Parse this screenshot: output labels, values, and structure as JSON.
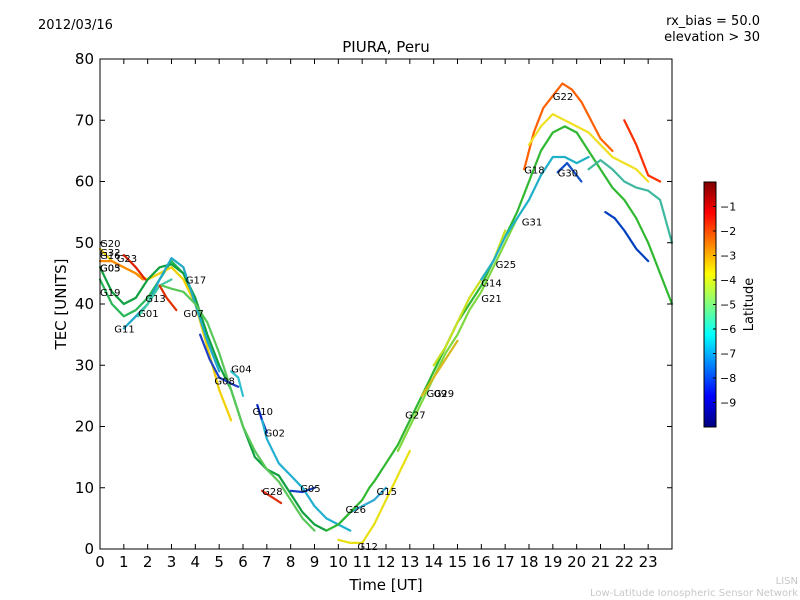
{
  "header": {
    "date": "2012/03/16",
    "rx_bias": "rx_bias = 50.0",
    "elevation": "elevation > 30",
    "title": "PIURA, Peru"
  },
  "footer": {
    "credit_short": "LISN",
    "credit_long": "Low-Latitude Ionospheric Sensor Network"
  },
  "chart_data": {
    "type": "line",
    "title": "PIURA, Peru",
    "xlabel": "Time [UT]",
    "ylabel": "TEC [UNITS]",
    "xlim": [
      0,
      24
    ],
    "ylim": [
      0,
      80
    ],
    "xticks": [
      0,
      1,
      2,
      3,
      4,
      5,
      6,
      7,
      8,
      9,
      10,
      11,
      12,
      13,
      14,
      15,
      16,
      17,
      18,
      19,
      20,
      21,
      22,
      23
    ],
    "yticks": [
      0,
      10,
      20,
      30,
      40,
      50,
      60,
      70,
      80
    ],
    "grid": false,
    "colorbar": {
      "label": "Latitude",
      "range": [
        -10,
        0
      ],
      "ticks": [
        -1,
        -2,
        -3,
        -4,
        -5,
        -6,
        -7,
        -8,
        -9
      ],
      "colormap": [
        "#00007f",
        "#0000ff",
        "#007fff",
        "#00ffff",
        "#7fff7f",
        "#ffff00",
        "#ff7f00",
        "#ff0000",
        "#7f0000"
      ]
    },
    "series": [
      {
        "name": "G11",
        "color": "#28b858",
        "points": [
          [
            0,
            44
          ],
          [
            0.5,
            40
          ],
          [
            1,
            38
          ],
          [
            1.5,
            39
          ],
          [
            2,
            41
          ],
          [
            2.5,
            44
          ],
          [
            3,
            47
          ],
          [
            3.5,
            45
          ],
          [
            4,
            40
          ]
        ]
      },
      {
        "name": "G20",
        "color": "#f0d000",
        "points": [
          [
            0,
            49
          ],
          [
            0.5,
            47
          ],
          [
            1,
            46
          ],
          [
            1.5,
            45
          ],
          [
            2,
            44
          ],
          [
            2.5,
            45
          ],
          [
            3,
            46
          ],
          [
            3.5,
            44
          ],
          [
            4,
            40
          ],
          [
            4.5,
            33
          ],
          [
            5,
            26
          ],
          [
            5.5,
            21
          ]
        ]
      },
      {
        "name": "G32",
        "color": "#ff8800",
        "points": [
          [
            0,
            47
          ],
          [
            0.5,
            47
          ],
          [
            1,
            46
          ],
          [
            1.5,
            45
          ],
          [
            1.8,
            44
          ]
        ]
      },
      {
        "name": "G23",
        "color": "#e02000",
        "points": [
          [
            1,
            48
          ],
          [
            1.5,
            46
          ],
          [
            1.9,
            44
          ]
        ]
      },
      {
        "name": "G19",
        "color": "#10a040",
        "points": [
          [
            0,
            46
          ],
          [
            0.5,
            42
          ],
          [
            1,
            40
          ],
          [
            1.5,
            41
          ],
          [
            2,
            44
          ],
          [
            2.5,
            46
          ],
          [
            3,
            46.5
          ],
          [
            3.5,
            45
          ],
          [
            4,
            41
          ],
          [
            4.5,
            35
          ],
          [
            5,
            30
          ],
          [
            5.5,
            26
          ],
          [
            6,
            20
          ],
          [
            6.5,
            15
          ],
          [
            7,
            13
          ],
          [
            7.5,
            12
          ],
          [
            8,
            9
          ],
          [
            8.5,
            6
          ],
          [
            9,
            4
          ],
          [
            9.5,
            3
          ]
        ]
      },
      {
        "name": "G13",
        "color": "#20a8c8",
        "points": [
          [
            1,
            36
          ],
          [
            1.5,
            38
          ],
          [
            2,
            40
          ],
          [
            2.5,
            44
          ],
          [
            3,
            47.5
          ],
          [
            3.5,
            46
          ],
          [
            4,
            40
          ],
          [
            4.5,
            34
          ],
          [
            5,
            29
          ]
        ]
      },
      {
        "name": "G01",
        "color": "#40c8a0",
        "points": [
          [
            1.6,
            38
          ],
          [
            2,
            40
          ],
          [
            2.5,
            43
          ],
          [
            3,
            44
          ]
        ]
      },
      {
        "name": "G07",
        "color": "#e03000",
        "points": [
          [
            2.5,
            43
          ],
          [
            2.8,
            41
          ],
          [
            3.2,
            39
          ]
        ]
      },
      {
        "name": "G17",
        "color": "#58c858",
        "points": [
          [
            2.6,
            43
          ],
          [
            3,
            42.5
          ],
          [
            3.5,
            42
          ],
          [
            4,
            40
          ],
          [
            4.5,
            37
          ],
          [
            5,
            32
          ],
          [
            5.5,
            26
          ],
          [
            6,
            20
          ],
          [
            6.5,
            16
          ],
          [
            7,
            13
          ],
          [
            7.5,
            11
          ],
          [
            8,
            8
          ],
          [
            8.5,
            5
          ],
          [
            9,
            3
          ]
        ]
      },
      {
        "name": "G08",
        "color": "#2040c8",
        "points": [
          [
            4.2,
            35
          ],
          [
            4.6,
            31
          ],
          [
            5,
            28
          ],
          [
            5.5,
            27
          ],
          [
            5.8,
            26.5
          ]
        ]
      },
      {
        "name": "G04",
        "color": "#30c0d0",
        "points": [
          [
            5.5,
            29
          ],
          [
            5.8,
            28
          ],
          [
            6,
            25
          ]
        ]
      },
      {
        "name": "G10",
        "color": "#0028c0",
        "points": [
          [
            6.6,
            23.5
          ],
          [
            6.8,
            21
          ],
          [
            7,
            19
          ]
        ]
      },
      {
        "name": "G02",
        "color": "#20b0d0",
        "points": [
          [
            6.8,
            21
          ],
          [
            7,
            18
          ],
          [
            7.5,
            14
          ],
          [
            8,
            12
          ],
          [
            8.5,
            10
          ],
          [
            9,
            7
          ],
          [
            9.5,
            5
          ],
          [
            10,
            4
          ],
          [
            10.5,
            3
          ]
        ]
      },
      {
        "name": "G28",
        "color": "#e03010",
        "points": [
          [
            6.8,
            9.5
          ],
          [
            7.2,
            8.5
          ],
          [
            7.6,
            7.5
          ]
        ]
      },
      {
        "name": "G05",
        "color": "#1040c0",
        "points": [
          [
            8,
            9.5
          ],
          [
            8.5,
            9.3
          ],
          [
            9,
            10
          ]
        ]
      },
      {
        "name": "G26",
        "color": "#30a8d0",
        "points": [
          [
            10,
            4
          ],
          [
            10.5,
            6
          ],
          [
            11,
            7
          ],
          [
            11.5,
            8
          ],
          [
            12,
            10
          ]
        ]
      },
      {
        "name": "G12",
        "color": "#e8e010",
        "points": [
          [
            10,
            1.5
          ],
          [
            10.5,
            1
          ],
          [
            11,
            1
          ],
          [
            11.5,
            4
          ],
          [
            12,
            8
          ],
          [
            12.5,
            12
          ],
          [
            13,
            16
          ]
        ]
      },
      {
        "name": "G15",
        "color": "#30b830",
        "points": [
          [
            9.5,
            3
          ],
          [
            10,
            4
          ],
          [
            10.5,
            6
          ],
          [
            11,
            8
          ],
          [
            11.3,
            10
          ],
          [
            11.5,
            11
          ],
          [
            12,
            14
          ],
          [
            12.5,
            17
          ],
          [
            13,
            21
          ],
          [
            13.5,
            25
          ],
          [
            14,
            29
          ],
          [
            14.5,
            33
          ],
          [
            15,
            37
          ],
          [
            15.5,
            40
          ],
          [
            16,
            43
          ],
          [
            16.5,
            47
          ],
          [
            17,
            51
          ],
          [
            17.5,
            55
          ],
          [
            18,
            60
          ],
          [
            18.5,
            65
          ],
          [
            19,
            68
          ],
          [
            19.5,
            69
          ],
          [
            20,
            68
          ],
          [
            20.5,
            65
          ],
          [
            21,
            62
          ],
          [
            21.5,
            59
          ],
          [
            22,
            57
          ],
          [
            22.5,
            54
          ],
          [
            23,
            50
          ],
          [
            23.5,
            45
          ],
          [
            24,
            40
          ]
        ]
      },
      {
        "name": "G27",
        "color": "#80d840",
        "points": [
          [
            12.5,
            16
          ],
          [
            13,
            20
          ],
          [
            13.5,
            24
          ],
          [
            14,
            28
          ],
          [
            14.5,
            32
          ],
          [
            15,
            35
          ],
          [
            15.5,
            39
          ],
          [
            16,
            42
          ],
          [
            16.5,
            46
          ],
          [
            17,
            50
          ],
          [
            17.5,
            54
          ]
        ]
      },
      {
        "name": "G29",
        "color": "#d8b818",
        "points": [
          [
            13.5,
            25
          ],
          [
            14,
            28
          ],
          [
            14.5,
            31
          ],
          [
            15,
            34
          ]
        ]
      },
      {
        "name": "G14",
        "color": "#c8e020",
        "points": [
          [
            14,
            30
          ],
          [
            14.5,
            33
          ],
          [
            15,
            37
          ],
          [
            15.5,
            41
          ],
          [
            16,
            44
          ],
          [
            16.5,
            47
          ],
          [
            17,
            52
          ]
        ]
      },
      {
        "name": "G31",
        "color": "#20b0c8",
        "points": [
          [
            16,
            44
          ],
          [
            16.5,
            47
          ],
          [
            17,
            51
          ],
          [
            17.5,
            54
          ],
          [
            18,
            57
          ],
          [
            18.5,
            61
          ],
          [
            19,
            64
          ],
          [
            19.5,
            64
          ],
          [
            20,
            63
          ],
          [
            20.5,
            64
          ]
        ]
      },
      {
        "name": "G18",
        "color": "#ff6000",
        "points": [
          [
            17.8,
            62
          ],
          [
            18.2,
            68
          ],
          [
            18.6,
            72
          ],
          [
            19,
            74
          ],
          [
            19.4,
            76
          ],
          [
            19.8,
            75
          ],
          [
            20.2,
            73
          ],
          [
            20.6,
            70
          ],
          [
            21,
            67
          ],
          [
            21.5,
            65
          ]
        ]
      },
      {
        "name": "G22",
        "color": "#f0e020",
        "points": [
          [
            18,
            66
          ],
          [
            18.5,
            69
          ],
          [
            19,
            71
          ],
          [
            19.5,
            70
          ],
          [
            20,
            69
          ],
          [
            20.5,
            68
          ],
          [
            21,
            66
          ],
          [
            21.5,
            64
          ],
          [
            22,
            63
          ],
          [
            22.5,
            62
          ],
          [
            23,
            60
          ]
        ]
      },
      {
        "name": "G30",
        "color": "#1050c8",
        "points": [
          [
            19.2,
            61.5
          ],
          [
            19.6,
            63
          ],
          [
            20,
            61
          ],
          [
            20.2,
            60
          ]
        ]
      },
      {
        "name": "G25",
        "color": "#40b8a0",
        "points": [
          [
            20.5,
            62
          ],
          [
            21,
            63.5
          ],
          [
            21.5,
            62
          ],
          [
            22,
            60
          ],
          [
            22.5,
            59
          ],
          [
            23,
            58.5
          ],
          [
            23.5,
            57
          ],
          [
            24,
            50
          ]
        ]
      },
      {
        "name": "G21",
        "color": "#ff3000",
        "points": [
          [
            22,
            70
          ],
          [
            22.5,
            66
          ],
          [
            23,
            61
          ],
          [
            23.5,
            60
          ]
        ]
      },
      {
        "name": "G09",
        "color": "#0040c0",
        "points": [
          [
            21.2,
            55
          ],
          [
            21.6,
            54
          ],
          [
            22,
            52
          ],
          [
            22.5,
            49
          ],
          [
            23,
            47
          ]
        ]
      }
    ],
    "labels": [
      {
        "text": "G20",
        "x": 0.0,
        "y": 50
      },
      {
        "text": "G32",
        "x": 0.0,
        "y": 48.5
      },
      {
        "text": "G16",
        "x": 0.0,
        "y": 48
      },
      {
        "text": "G23",
        "x": 0.7,
        "y": 47.5
      },
      {
        "text": "G03",
        "x": 0.0,
        "y": 46
      },
      {
        "text": "G05",
        "x": 0.0,
        "y": 46
      },
      {
        "text": "G19",
        "x": 0.0,
        "y": 42
      },
      {
        "text": "G13",
        "x": 1.9,
        "y": 41
      },
      {
        "text": "G01",
        "x": 1.6,
        "y": 38.5
      },
      {
        "text": "G07",
        "x": 3.5,
        "y": 38.5
      },
      {
        "text": "G11",
        "x": 0.6,
        "y": 36
      },
      {
        "text": "G17",
        "x": 3.6,
        "y": 44
      },
      {
        "text": "G04",
        "x": 5.5,
        "y": 29.5
      },
      {
        "text": "G08",
        "x": 4.8,
        "y": 27.5
      },
      {
        "text": "G10",
        "x": 6.4,
        "y": 22.5
      },
      {
        "text": "G02",
        "x": 6.9,
        "y": 19
      },
      {
        "text": "G28",
        "x": 6.8,
        "y": 9.5
      },
      {
        "text": "G05",
        "x": 8.4,
        "y": 10
      },
      {
        "text": "G26",
        "x": 10.3,
        "y": 6.5
      },
      {
        "text": "G12",
        "x": 10.8,
        "y": 0.5
      },
      {
        "text": "G15",
        "x": 11.6,
        "y": 9.5
      },
      {
        "text": "G27",
        "x": 12.8,
        "y": 22
      },
      {
        "text": "G09",
        "x": 13.7,
        "y": 25.5
      },
      {
        "text": "G29",
        "x": 14.0,
        "y": 25.5
      },
      {
        "text": "G14",
        "x": 16.0,
        "y": 43.5
      },
      {
        "text": "G25",
        "x": 16.6,
        "y": 46.5
      },
      {
        "text": "G21",
        "x": 16.0,
        "y": 41
      },
      {
        "text": "G31",
        "x": 17.7,
        "y": 53.5
      },
      {
        "text": "G18",
        "x": 17.8,
        "y": 62
      },
      {
        "text": "G22",
        "x": 19.0,
        "y": 74
      },
      {
        "text": "G30",
        "x": 19.2,
        "y": 61.5
      }
    ]
  }
}
